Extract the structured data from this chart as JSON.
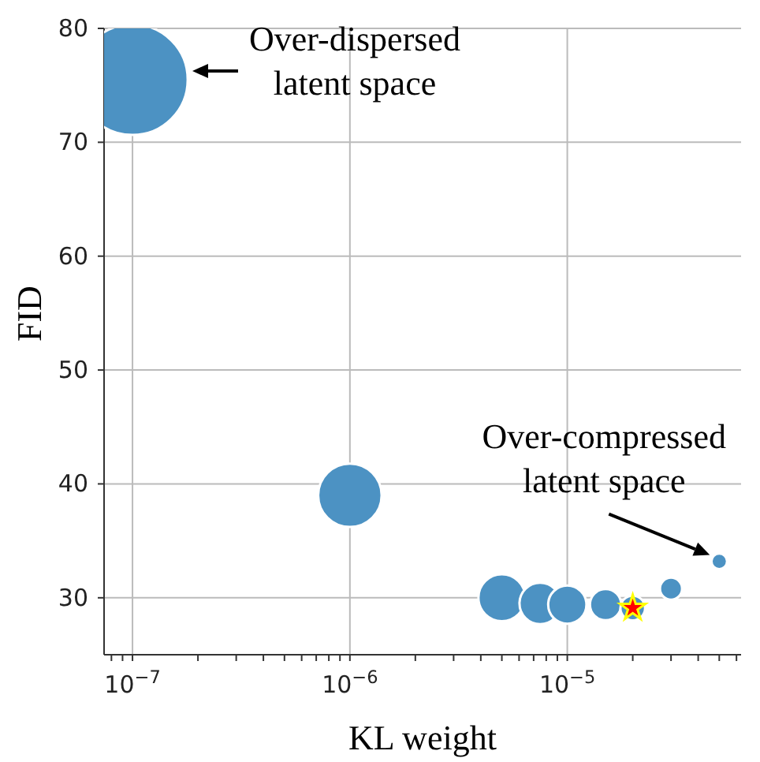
{
  "chart_data": {
    "type": "bubble",
    "xlabel": "KL weight",
    "ylabel": "FID",
    "x": [
      1e-07,
      1e-06,
      5e-06,
      7.5e-06,
      1e-05,
      1.5e-05,
      2e-05,
      3e-05,
      5e-05
    ],
    "series": [
      {
        "color": "#4c92c3",
        "values": [
          75.5,
          39,
          30,
          29.5,
          29.4,
          29.4,
          29.1,
          30.8,
          33.2
        ],
        "sizes": [
          1,
          0.33,
          0.18,
          0.14,
          0.12,
          0.08,
          0.05,
          0.04,
          0.02
        ]
      },
      {
        "type": "scatter",
        "color": "#ff0000",
        "x": [
          2e-05
        ],
        "values": [
          29.1
        ],
        "marker": "star"
      }
    ],
    "log": "x",
    "xlim": [
      7.4e-08,
      6.3e-05
    ],
    "ylim": [
      25,
      80
    ],
    "xticks": [
      {
        "value": 8e-08,
        "label": null
      },
      {
        "value": 9e-08,
        "label": null
      },
      {
        "value": 1e-07,
        "label": "10$^{−7}$"
      },
      {
        "value": 2e-07,
        "label": null
      },
      {
        "value": 3e-07,
        "label": null
      },
      {
        "value": 4e-07,
        "label": null
      },
      {
        "value": 5e-07,
        "label": null
      },
      {
        "value": 6e-07,
        "label": null
      },
      {
        "value": 7e-07,
        "label": null
      },
      {
        "value": 8e-07,
        "label": null
      },
      {
        "value": 9e-07,
        "label": null
      },
      {
        "value": 1e-06,
        "label": "10$^{−6}$"
      },
      {
        "value": 2e-06,
        "label": null
      },
      {
        "value": 3e-06,
        "label": null
      },
      {
        "value": 4e-06,
        "label": null
      },
      {
        "value": 5e-06,
        "label": null
      },
      {
        "value": 6e-06,
        "label": null
      },
      {
        "value": 7e-06,
        "label": null
      },
      {
        "value": 8e-06,
        "label": null
      },
      {
        "value": 9e-06,
        "label": null
      },
      {
        "value": 1e-05,
        "label": "10$^{−5}$"
      },
      {
        "value": 2e-05,
        "label": null
      },
      {
        "value": 3e-05,
        "label": null
      },
      {
        "value": 4e-05,
        "label": null
      },
      {
        "value": 5e-05,
        "label": null
      },
      {
        "value": 6e-05,
        "label": null
      }
    ],
    "yticks": [
      30,
      40,
      50,
      60,
      70,
      80
    ],
    "grid": true,
    "annotations": [
      "Over-dispersed\nlatent space",
      {
        "text": "Over-compressed\nlatent space",
        "x": 5e-05,
        "y": 33.2
      }
    ]
  }
}
